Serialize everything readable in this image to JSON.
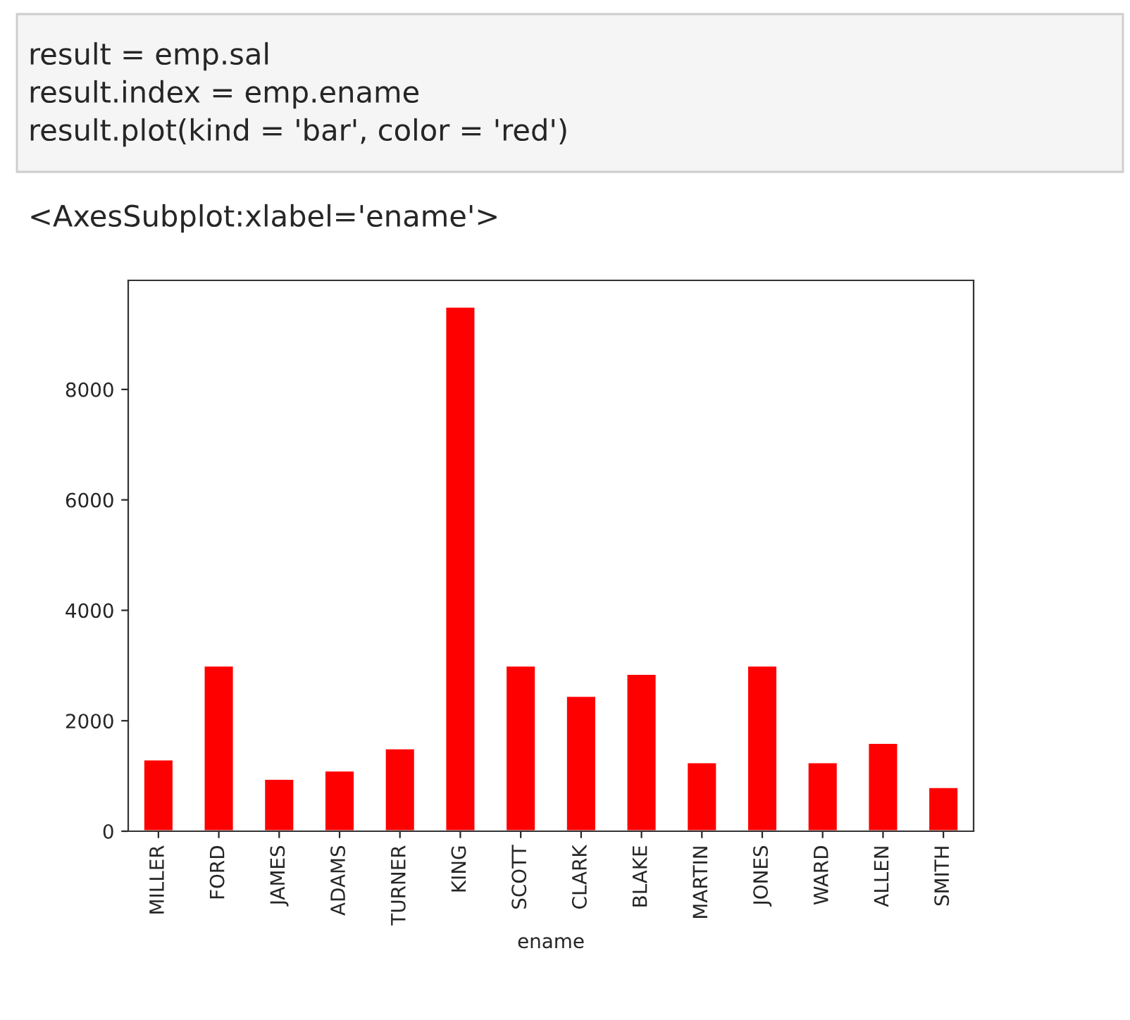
{
  "chart_data": {
    "type": "bar",
    "xlabel": "ename",
    "categories": [
      "MILLER",
      "FORD",
      "JAMES",
      "ADAMS",
      "TURNER",
      "KING",
      "SCOTT",
      "CLARK",
      "BLAKE",
      "MARTIN",
      "JONES",
      "WARD",
      "ALLEN",
      "SMITH"
    ],
    "values": [
      1300,
      3000,
      950,
      1100,
      1500,
      9500,
      3000,
      2450,
      2850,
      1250,
      3000,
      1250,
      1600,
      800
    ],
    "color": "#ff0000",
    "ylim": [
      0,
      9975
    ],
    "yticks": [
      0,
      2000,
      4000,
      6000,
      8000
    ],
    "grid": false,
    "annotations": [
      "result = emp.sal",
      "result.index = emp.ename",
      "result.plot(kind = 'bar', color = 'red')",
      "<AxesSubplot:xlabel='ename'>"
    ]
  }
}
